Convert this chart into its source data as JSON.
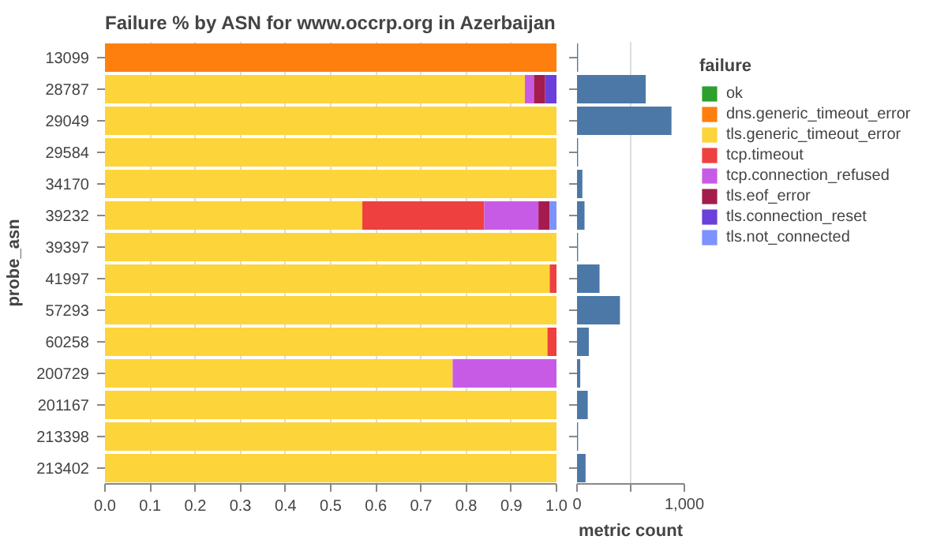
{
  "chart_data": [
    {
      "type": "bar",
      "title": "Failure % by ASN for www.occrp.org in Azerbaijan",
      "ylabel": "probe_asn",
      "legend_title": "failure",
      "orientation": "horizontal",
      "stacked": true,
      "categories": [
        "13099",
        "28787",
        "29049",
        "29584",
        "34170",
        "39232",
        "39397",
        "41997",
        "57293",
        "60258",
        "200729",
        "201167",
        "213398",
        "213402"
      ],
      "xlim": [
        0,
        1
      ],
      "xticks": [
        {
          "value": 0,
          "label": "0.0"
        },
        {
          "value": 0.1,
          "label": "0.1"
        },
        {
          "value": 0.2,
          "label": "0.2"
        },
        {
          "value": 0.3,
          "label": "0.3"
        },
        {
          "value": 0.4,
          "label": "0.4"
        },
        {
          "value": 0.5,
          "label": "0.5"
        },
        {
          "value": 0.6,
          "label": "0.6"
        },
        {
          "value": 0.7,
          "label": "0.7"
        },
        {
          "value": 0.8,
          "label": "0.8"
        },
        {
          "value": 0.9,
          "label": "0.9"
        },
        {
          "value": 1,
          "label": "1.0"
        }
      ],
      "grid": "x",
      "legend": "right",
      "series": [
        {
          "name": "ok",
          "color": "#2ca02c",
          "values": [
            0,
            0,
            0,
            0,
            0,
            0,
            0,
            0,
            0,
            0,
            0,
            0,
            0,
            0
          ]
        },
        {
          "name": "dns.generic_timeout_error",
          "color": "#ff7f0e",
          "values": [
            1,
            0,
            0,
            0,
            0,
            0,
            0,
            0,
            0,
            0,
            0,
            0,
            0,
            0
          ]
        },
        {
          "name": "tls.generic_timeout_error",
          "color": "#fdd43a",
          "values": [
            0,
            0.93,
            1,
            1,
            1,
            0.57,
            1,
            0.985,
            1,
            0.98,
            0.77,
            1,
            1,
            1
          ]
        },
        {
          "name": "tcp.timeout",
          "color": "#ef4040",
          "values": [
            0,
            0,
            0,
            0,
            0,
            0.27,
            0,
            0.015,
            0,
            0.02,
            0,
            0,
            0,
            0
          ]
        },
        {
          "name": "tcp.connection_refused",
          "color": "#c85be6",
          "values": [
            0,
            0.02,
            0,
            0,
            0,
            0.12,
            0,
            0,
            0,
            0,
            0.23,
            0,
            0,
            0
          ]
        },
        {
          "name": "tls.eof_error",
          "color": "#a31c4d",
          "values": [
            0,
            0.025,
            0,
            0,
            0,
            0.025,
            0,
            0,
            0,
            0,
            0,
            0,
            0,
            0
          ]
        },
        {
          "name": "tls.connection_reset",
          "color": "#6b3fd9",
          "values": [
            0,
            0.025,
            0,
            0,
            0,
            0,
            0,
            0,
            0,
            0,
            0,
            0,
            0,
            0
          ]
        },
        {
          "name": "tls.not_connected",
          "color": "#7b92ff",
          "values": [
            0,
            0,
            0,
            0,
            0,
            0.015,
            0,
            0,
            0,
            0,
            0,
            0,
            0,
            0
          ]
        }
      ]
    },
    {
      "type": "bar",
      "orientation": "horizontal",
      "xlabel": "metric count",
      "categories": [
        "13099",
        "28787",
        "29049",
        "29584",
        "34170",
        "39232",
        "39397",
        "41997",
        "57293",
        "60258",
        "200729",
        "201167",
        "213398",
        "213402"
      ],
      "xlim": [
        0,
        1000
      ],
      "xticks": [
        0,
        {
          "value": 500,
          "label": null
        },
        {
          "value": 1000,
          "label": "1,000"
        }
      ],
      "grid": "x",
      "tick_labels": "x",
      "series": [
        {
          "color": "#4c78a8",
          "values": [
            10,
            640,
            880,
            10,
            50,
            70,
            10,
            210,
            400,
            110,
            30,
            100,
            10,
            80
          ]
        }
      ]
    }
  ]
}
